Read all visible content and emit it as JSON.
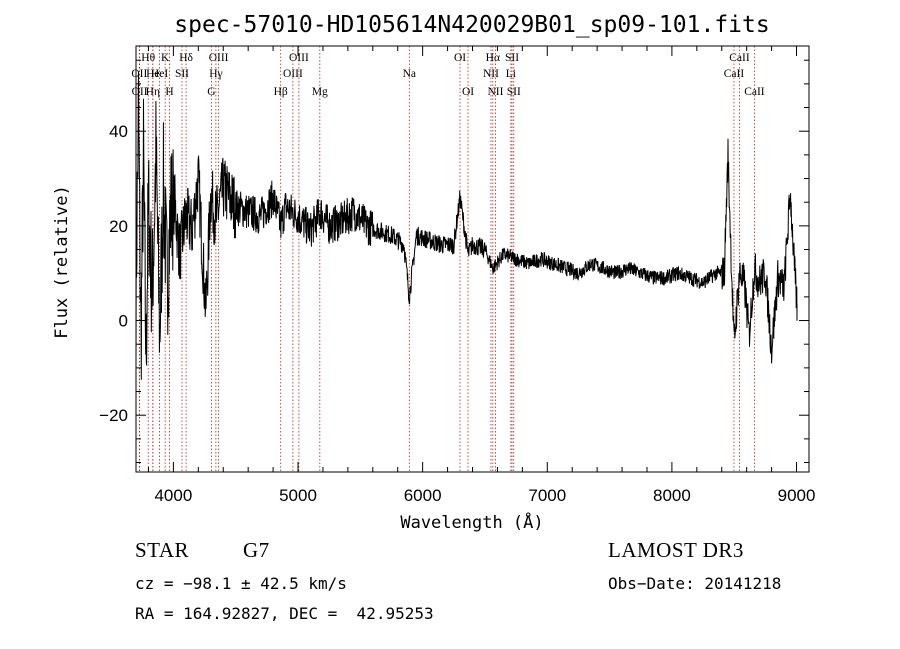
{
  "chart_data": {
    "type": "line",
    "title": "spec-57010-HD105614N420029B01_sp09-101.fits",
    "xlabel": "Wavelength (Å)",
    "ylabel": "Flux (relative)",
    "xlim": [
      3700,
      9100
    ],
    "ylim": [
      -32,
      58
    ],
    "xticks": [
      4000,
      5000,
      6000,
      7000,
      8000,
      9000
    ],
    "yticks": [
      -20,
      0,
      20,
      40
    ],
    "grid": false,
    "series": [
      {
        "name": "flux",
        "x": [
          3700,
          3720,
          3740,
          3760,
          3780,
          3800,
          3830,
          3860,
          3890,
          3920,
          3950,
          3980,
          4010,
          4050,
          4100,
          4150,
          4200,
          4260,
          4300,
          4340,
          4400,
          4500,
          4600,
          4700,
          4800,
          4861,
          4900,
          5000,
          5100,
          5180,
          5250,
          5350,
          5450,
          5550,
          5650,
          5750,
          5850,
          5893,
          5950,
          6050,
          6150,
          6250,
          6300,
          6364,
          6400,
          6500,
          6563,
          6650,
          6750,
          6850,
          6950,
          7050,
          7150,
          7250,
          7350,
          7450,
          7550,
          7650,
          7750,
          7850,
          7950,
          8050,
          8150,
          8250,
          8350,
          8420,
          8450,
          8498,
          8542,
          8580,
          8620,
          8662,
          8700,
          8750,
          8800,
          8850,
          8900,
          8950,
          8990,
          9010
        ],
        "values": [
          5,
          45,
          -5,
          35,
          -8,
          25,
          5,
          35,
          -3,
          28,
          8,
          24,
          25,
          14,
          22,
          19,
          30,
          2,
          27,
          21,
          28,
          24,
          23,
          22,
          26,
          20,
          24,
          22,
          19,
          23,
          20,
          21,
          23,
          20,
          19,
          18,
          16,
          5,
          18,
          17,
          16,
          16,
          26,
          14,
          16,
          15,
          11,
          14,
          13,
          12,
          13,
          12,
          11,
          10,
          12,
          11,
          10,
          11,
          10,
          9,
          9,
          10,
          9,
          8,
          10,
          10,
          35,
          -5,
          10,
          8,
          -3,
          11,
          8,
          10,
          -6,
          9,
          7,
          27,
          8,
          1
        ]
      }
    ],
    "spectral_lines": [
      {
        "label": "OII",
        "x": 3727,
        "row": 2
      },
      {
        "label": "OII",
        "x": 3729,
        "row": 3
      },
      {
        "label": "Hθ",
        "x": 3798,
        "row": 1
      },
      {
        "label": "He",
        "x": 3835,
        "row": 2
      },
      {
        "label": "Hη",
        "x": 3835,
        "row": 3
      },
      {
        "label": "K",
        "x": 3934,
        "row": 1
      },
      {
        "label": "HeI",
        "x": 3889,
        "row": 2
      },
      {
        "label": "H",
        "x": 3969,
        "row": 3
      },
      {
        "label": "Hδ",
        "x": 4102,
        "row": 1
      },
      {
        "label": "SII",
        "x": 4069,
        "row": 2
      },
      {
        "label": "OIII",
        "x": 4363,
        "row": 1
      },
      {
        "label": "Hγ",
        "x": 4341,
        "row": 2
      },
      {
        "label": "G",
        "x": 4305,
        "row": 3
      },
      {
        "label": "OIII",
        "x": 5007,
        "row": 1
      },
      {
        "label": "OIII",
        "x": 4959,
        "row": 2
      },
      {
        "label": "Hβ",
        "x": 4861,
        "row": 3
      },
      {
        "label": "Mg",
        "x": 5175,
        "row": 3
      },
      {
        "label": "Na",
        "x": 5893,
        "row": 2
      },
      {
        "label": "OI",
        "x": 6300,
        "row": 1
      },
      {
        "label": "OI",
        "x": 6364,
        "row": 3
      },
      {
        "label": "Hα",
        "x": 6563,
        "row": 1
      },
      {
        "label": "NII",
        "x": 6548,
        "row": 2
      },
      {
        "label": "NII",
        "x": 6584,
        "row": 3
      },
      {
        "label": "SII",
        "x": 6717,
        "row": 1
      },
      {
        "label": "Li",
        "x": 6708,
        "row": 2
      },
      {
        "label": "SII",
        "x": 6731,
        "row": 3
      },
      {
        "label": "CaII",
        "x": 8542,
        "row": 1
      },
      {
        "label": "CaII",
        "x": 8498,
        "row": 2
      },
      {
        "label": "CaII",
        "x": 8662,
        "row": 3
      }
    ]
  },
  "info": {
    "object_class": "STAR",
    "subclass": "G7",
    "survey": "LAMOST DR3",
    "cz": "cz = −98.1 ± 42.5 km/s",
    "obs_date": "Obs−Date: 20141218",
    "coords": "RA = 164.92827, DEC =  42.95253"
  }
}
